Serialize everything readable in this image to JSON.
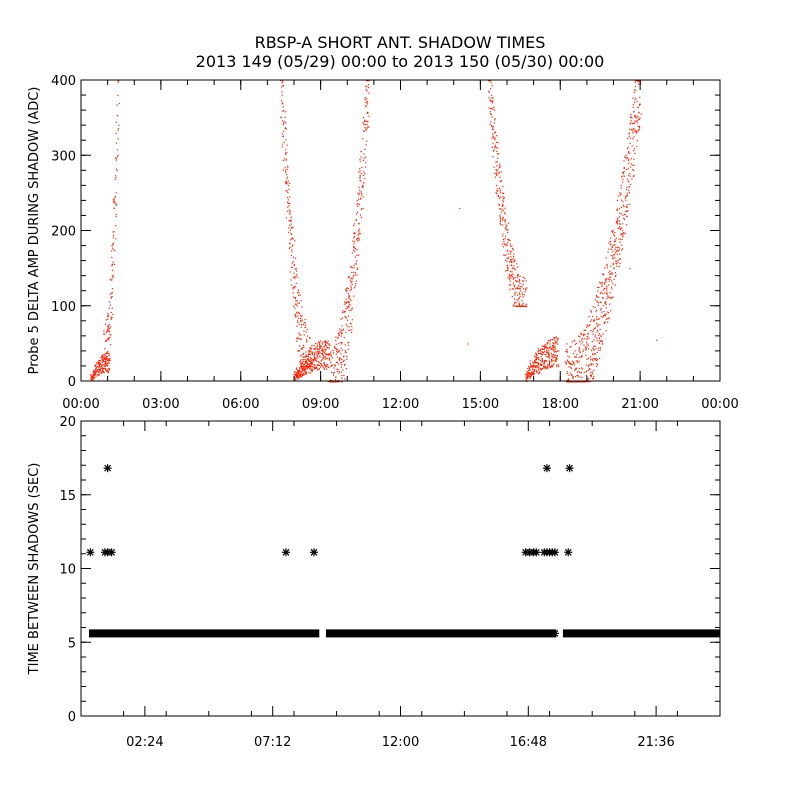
{
  "chart_data": [
    {
      "type": "scatter",
      "title": "RBSP-A SHORT ANT. SHADOW TIMES",
      "subtitle": "2013 149 (05/29) 00:00 to 2013 150 (05/30) 00:00",
      "ylabel": "Probe 5 DELTA AMP DURING SHADOW (ADC)",
      "xlabel": "",
      "xlim": [
        0,
        24
      ],
      "ylim": [
        0,
        400
      ],
      "x_ticks": [
        0,
        3,
        6,
        9,
        12,
        15,
        18,
        21,
        24
      ],
      "x_tick_labels": [
        "00:00",
        "03:00",
        "06:00",
        "09:00",
        "12:00",
        "15:00",
        "18:00",
        "21:00",
        "00:00"
      ],
      "y_ticks": [
        0,
        100,
        200,
        300,
        400
      ],
      "y_tick_labels": [
        "0",
        "100",
        "200",
        "300",
        "400"
      ],
      "color": "#ff2000",
      "marker": "dot",
      "series_regions": [
        {
          "x_start": 0.35,
          "x_end": 1.05,
          "y_range": [
            0,
            40
          ]
        },
        {
          "x_start": 0.85,
          "x_end": 1.4,
          "y_range": [
            30,
            400
          ]
        },
        {
          "x_start": 7.5,
          "x_end": 8.6,
          "y_range": [
            20,
            400
          ]
        },
        {
          "x_start": 8.0,
          "x_end": 9.3,
          "y_range": [
            0,
            55
          ]
        },
        {
          "x_start": 9.3,
          "x_end": 10.8,
          "y_range": [
            0,
            400
          ]
        },
        {
          "x_start": 15.3,
          "x_end": 16.7,
          "y_range": [
            100,
            400
          ]
        },
        {
          "x_start": 16.7,
          "x_end": 17.9,
          "y_range": [
            0,
            60
          ]
        },
        {
          "x_start": 18.2,
          "x_end": 21.0,
          "y_range": [
            0,
            400
          ]
        }
      ],
      "isolated_points": [
        {
          "x": 14.2,
          "y": 230
        },
        {
          "x": 14.5,
          "y": 50
        },
        {
          "x": 21.6,
          "y": 55
        },
        {
          "x": 20.6,
          "y": 150
        }
      ]
    },
    {
      "type": "scatter",
      "ylabel": "TIME BETWEEN SHADOWS (SEC)",
      "xlabel": "",
      "xlim": [
        0,
        24
      ],
      "ylim": [
        0,
        20
      ],
      "x_ticks": [
        2.4,
        7.2,
        12.0,
        16.8,
        21.6
      ],
      "x_tick_labels": [
        "02:24",
        "07:12",
        "12:00",
        "16:48",
        "21:36"
      ],
      "y_ticks": [
        0,
        5,
        10,
        15,
        20
      ],
      "y_tick_labels": [
        "0",
        "5",
        "10",
        "15",
        "20"
      ],
      "color": "#000000",
      "marker": "asterisk",
      "baseline_value": 5.6,
      "baseline_segments": [
        [
          0.3,
          8.95
        ],
        [
          9.2,
          17.85
        ],
        [
          18.1,
          24.0
        ]
      ],
      "points": [
        {
          "x": 0.35,
          "y": 11.1
        },
        {
          "x": 0.9,
          "y": 11.1
        },
        {
          "x": 1.0,
          "y": 11.1
        },
        {
          "x": 1.15,
          "y": 11.1
        },
        {
          "x": 1.0,
          "y": 16.8
        },
        {
          "x": 7.7,
          "y": 11.1
        },
        {
          "x": 8.75,
          "y": 11.1
        },
        {
          "x": 16.7,
          "y": 11.1
        },
        {
          "x": 16.85,
          "y": 11.1
        },
        {
          "x": 17.0,
          "y": 11.1
        },
        {
          "x": 17.1,
          "y": 11.1
        },
        {
          "x": 17.4,
          "y": 11.1
        },
        {
          "x": 17.5,
          "y": 11.1
        },
        {
          "x": 17.6,
          "y": 11.1
        },
        {
          "x": 17.7,
          "y": 11.1
        },
        {
          "x": 17.8,
          "y": 11.1
        },
        {
          "x": 17.5,
          "y": 16.8
        },
        {
          "x": 18.3,
          "y": 11.1
        },
        {
          "x": 18.35,
          "y": 16.8
        },
        {
          "x": 17.8,
          "y": 5.6
        }
      ]
    }
  ]
}
